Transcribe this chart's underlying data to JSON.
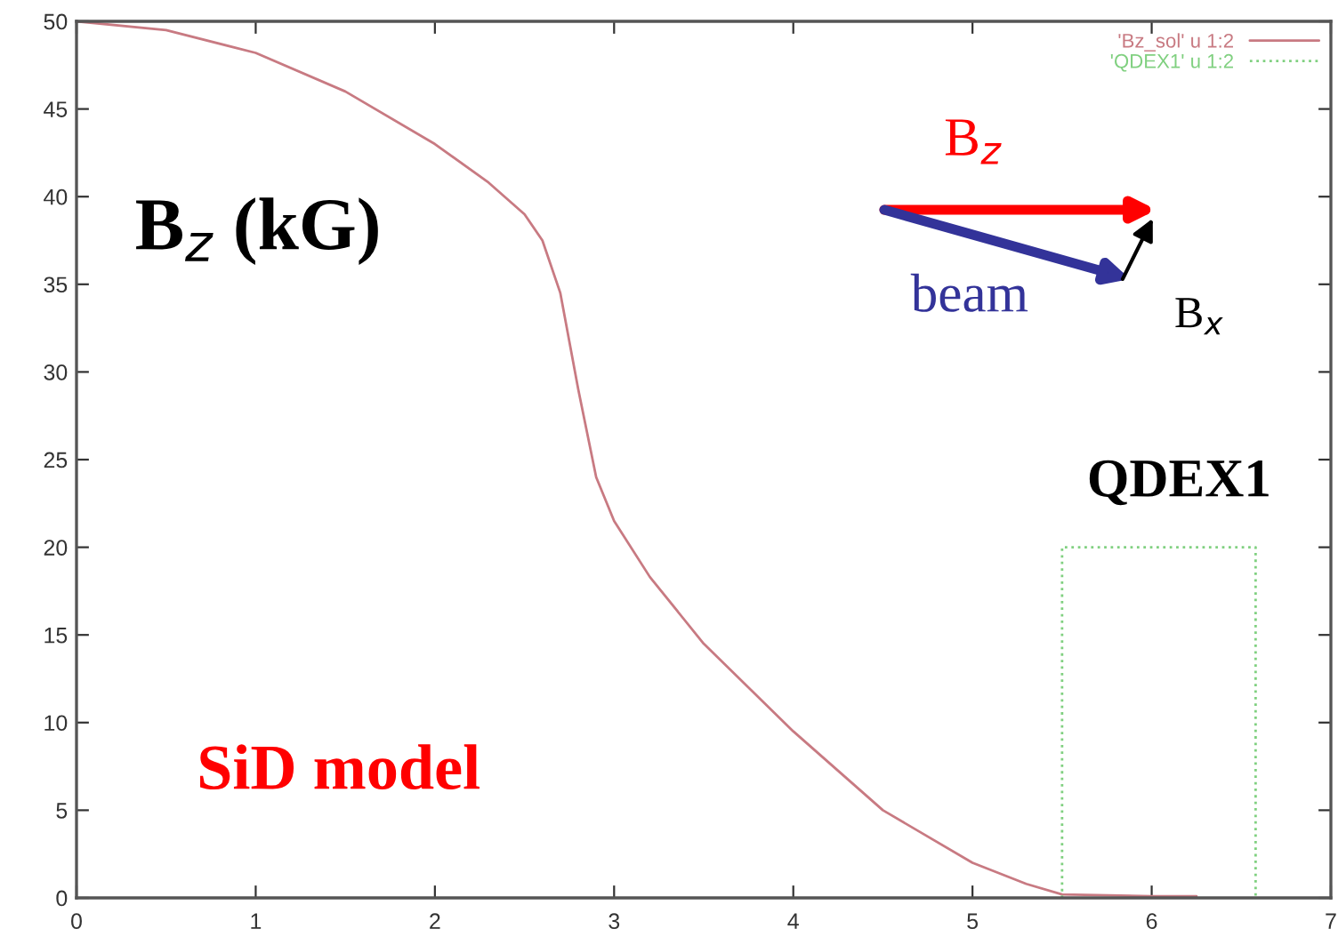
{
  "chart_data": {
    "type": "line",
    "xlim": [
      0,
      7
    ],
    "ylim": [
      0,
      50
    ],
    "xticks": [
      0,
      1,
      2,
      3,
      4,
      5,
      6,
      7
    ],
    "yticks": [
      0,
      5,
      10,
      15,
      20,
      25,
      30,
      35,
      40,
      45,
      50
    ],
    "grid": false,
    "legend": "top right",
    "marker": "none",
    "series": [
      {
        "name": "'Bz_sol' u 1:2",
        "color": "#c87a82",
        "line_style": "solid",
        "x": [
          0,
          0.5,
          1,
          1.5,
          2,
          2.3,
          2.5,
          2.6,
          2.7,
          2.8,
          2.9,
          3.0,
          3.2,
          3.5,
          4,
          4.5,
          5,
          5.3,
          5.5,
          6,
          6.25
        ],
        "values": [
          50,
          49.5,
          48.2,
          46,
          43,
          40.8,
          39,
          37.5,
          34.5,
          29,
          24,
          21.5,
          18.3,
          14.5,
          9.5,
          5,
          2,
          0.8,
          0.2,
          0.1,
          0.1
        ]
      },
      {
        "name": "'QDEX1' u 1:2",
        "color": "#80d080",
        "line_style": "dotted",
        "x": [
          5.5,
          5.5,
          6.58,
          6.58
        ],
        "values": [
          0,
          20,
          20,
          0
        ]
      }
    ],
    "annotations": [
      "B$_{z}$ (kG)",
      "SiD model",
      "QDEX1",
      "B$_{z}$",
      "beam",
      "B$_{x}$"
    ]
  }
}
